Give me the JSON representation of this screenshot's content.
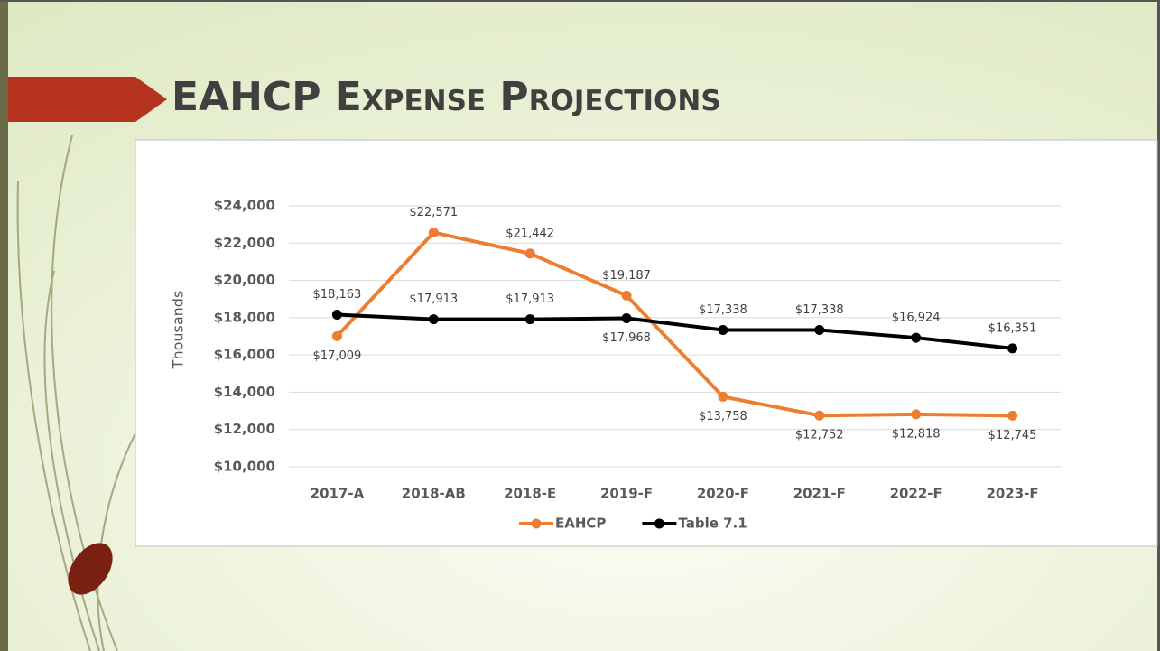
{
  "title": "EAHCP Expense Projections",
  "chart_data": {
    "type": "line",
    "ylabel": "Thousands",
    "categories": [
      "2017-A",
      "2018-AB",
      "2018-E",
      "2019-F",
      "2020-F",
      "2021-F",
      "2022-F",
      "2023-F"
    ],
    "series": [
      {
        "name": "EAHCP",
        "color": "#ed7d31",
        "values": [
          17009,
          22571,
          21442,
          19187,
          13758,
          12752,
          12818,
          12745
        ],
        "value_labels": [
          "$17,009",
          "$22,571",
          "$21,442",
          "$19,187",
          "$13,758",
          "$12,752",
          "$12,818",
          "$12,745"
        ]
      },
      {
        "name": "Table 7.1",
        "color": "#000000",
        "values": [
          18163,
          17913,
          17913,
          17968,
          17338,
          17338,
          16924,
          16351
        ],
        "value_labels": [
          "$18,163",
          "$17,913",
          "$17,913",
          "$17,968",
          "$17,338",
          "$17,338",
          "$16,924",
          "$16,351"
        ]
      }
    ],
    "ylim": [
      10000,
      24000
    ],
    "yticks": [
      {
        "value": 10000,
        "label": "$10,000"
      },
      {
        "value": 12000,
        "label": "$12,000"
      },
      {
        "value": 14000,
        "label": "$14,000"
      },
      {
        "value": 16000,
        "label": "$16,000"
      },
      {
        "value": 18000,
        "label": "$18,000"
      },
      {
        "value": 20000,
        "label": "$20,000"
      },
      {
        "value": 22000,
        "label": "$22,000"
      },
      {
        "value": 24000,
        "label": "$24,000"
      }
    ],
    "grid": true,
    "legend": "bottom"
  }
}
